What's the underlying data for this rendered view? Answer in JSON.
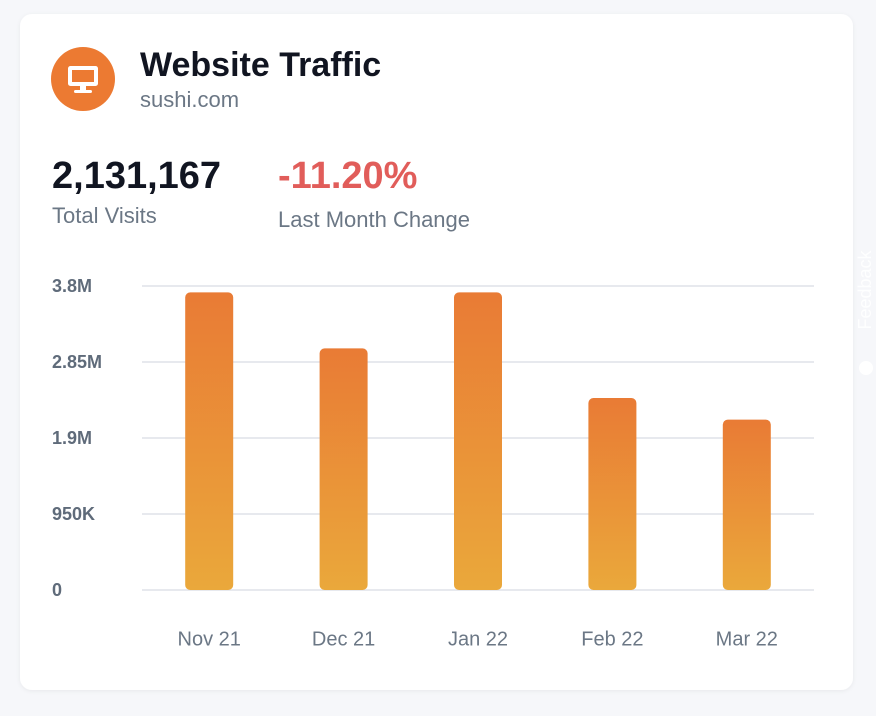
{
  "header": {
    "title": "Website Traffic",
    "domain": "sushi.com"
  },
  "stats": [
    {
      "value": "2,131,167",
      "label": "Total Visits"
    },
    {
      "value": "-11.20%",
      "label": "Last Month Change"
    }
  ],
  "feedback_tab": "Feedback",
  "chart_data": {
    "type": "bar",
    "categories": [
      "Nov 21",
      "Dec 21",
      "Jan 22",
      "Feb 22",
      "Mar 22"
    ],
    "values": [
      3720000,
      3020000,
      3720000,
      2400000,
      2130000
    ],
    "gradient": [
      "#e97b35",
      "#eaa83b"
    ],
    "ylim": [
      0,
      3800000
    ],
    "yticks": [
      0,
      {
        "value": 950000,
        "label": "950K"
      },
      {
        "value": 1900000,
        "label": "1.9M"
      },
      {
        "value": 2850000,
        "label": "2.85M"
      },
      {
        "value": 3800000,
        "label": "3.8M"
      }
    ],
    "grid": true
  }
}
